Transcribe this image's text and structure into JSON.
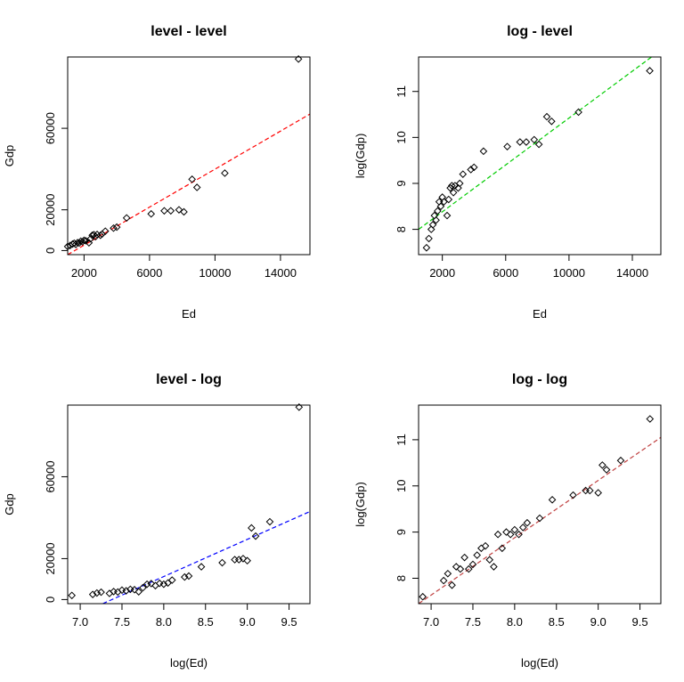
{
  "chart_data": [
    {
      "type": "scatter",
      "title": "level - level",
      "xlabel": "Ed",
      "ylabel": "Gdp",
      "xlim": [
        1000,
        15800
      ],
      "ylim": [
        -2000,
        95000
      ],
      "xticks": [
        2000,
        6000,
        10000,
        14000
      ],
      "xtick_labels": [
        "2000",
        "6000",
        "10000",
        "14000"
      ],
      "yticks": [
        0,
        20000,
        60000
      ],
      "ytick_labels": [
        "0",
        "20000",
        "60000"
      ],
      "points": [
        {
          "x": 1000,
          "y": 2000
        },
        {
          "x": 1150,
          "y": 2500
        },
        {
          "x": 1300,
          "y": 3200
        },
        {
          "x": 1400,
          "y": 3600
        },
        {
          "x": 1500,
          "y": 3000
        },
        {
          "x": 1600,
          "y": 3900
        },
        {
          "x": 1700,
          "y": 3700
        },
        {
          "x": 1800,
          "y": 4600
        },
        {
          "x": 1900,
          "y": 4300
        },
        {
          "x": 2000,
          "y": 5000
        },
        {
          "x": 2100,
          "y": 4800
        },
        {
          "x": 2300,
          "y": 3800
        },
        {
          "x": 2400,
          "y": 5800
        },
        {
          "x": 2500,
          "y": 7500
        },
        {
          "x": 2600,
          "y": 7800
        },
        {
          "x": 2700,
          "y": 6800
        },
        {
          "x": 2800,
          "y": 7900
        },
        {
          "x": 3000,
          "y": 7500
        },
        {
          "x": 3100,
          "y": 8100
        },
        {
          "x": 3300,
          "y": 9500
        },
        {
          "x": 3800,
          "y": 11000
        },
        {
          "x": 4000,
          "y": 11500
        },
        {
          "x": 4600,
          "y": 16000
        },
        {
          "x": 6100,
          "y": 18000
        },
        {
          "x": 6900,
          "y": 19500
        },
        {
          "x": 7300,
          "y": 19500
        },
        {
          "x": 7800,
          "y": 20000
        },
        {
          "x": 8100,
          "y": 19000
        },
        {
          "x": 8600,
          "y": 35000
        },
        {
          "x": 8900,
          "y": 31000
        },
        {
          "x": 10600,
          "y": 38000
        },
        {
          "x": 15100,
          "y": 94000
        }
      ],
      "fit": {
        "x": [
          1000,
          15800
        ],
        "y": [
          -2000,
          67000
        ],
        "color": "#ff0000"
      }
    },
    {
      "type": "scatter",
      "title": "log - level",
      "xlabel": "Ed",
      "ylabel": "log(Gdp)",
      "xlim": [
        500,
        15800
      ],
      "ylim": [
        7.45,
        11.75
      ],
      "xticks": [
        2000,
        6000,
        10000,
        14000
      ],
      "xtick_labels": [
        "2000",
        "6000",
        "10000",
        "14000"
      ],
      "yticks": [
        8,
        9,
        10,
        11
      ],
      "ytick_labels": [
        "8",
        "9",
        "10",
        "11"
      ],
      "points": [
        {
          "x": 1000,
          "y": 7.6
        },
        {
          "x": 1150,
          "y": 7.8
        },
        {
          "x": 1300,
          "y": 8.0
        },
        {
          "x": 1400,
          "y": 8.1
        },
        {
          "x": 1500,
          "y": 8.3
        },
        {
          "x": 1600,
          "y": 8.2
        },
        {
          "x": 1700,
          "y": 8.4
        },
        {
          "x": 1800,
          "y": 8.6
        },
        {
          "x": 1900,
          "y": 8.5
        },
        {
          "x": 2000,
          "y": 8.7
        },
        {
          "x": 2100,
          "y": 8.6
        },
        {
          "x": 2300,
          "y": 8.3
        },
        {
          "x": 2400,
          "y": 8.65
        },
        {
          "x": 2500,
          "y": 8.9
        },
        {
          "x": 2600,
          "y": 8.95
        },
        {
          "x": 2700,
          "y": 8.8
        },
        {
          "x": 2800,
          "y": 8.95
        },
        {
          "x": 3000,
          "y": 8.9
        },
        {
          "x": 3100,
          "y": 9.0
        },
        {
          "x": 3300,
          "y": 9.2
        },
        {
          "x": 3800,
          "y": 9.3
        },
        {
          "x": 4000,
          "y": 9.35
        },
        {
          "x": 4600,
          "y": 9.7
        },
        {
          "x": 6100,
          "y": 9.8
        },
        {
          "x": 6900,
          "y": 9.9
        },
        {
          "x": 7300,
          "y": 9.9
        },
        {
          "x": 7800,
          "y": 9.95
        },
        {
          "x": 8100,
          "y": 9.85
        },
        {
          "x": 8600,
          "y": 10.45
        },
        {
          "x": 8900,
          "y": 10.35
        },
        {
          "x": 10600,
          "y": 10.55
        },
        {
          "x": 15100,
          "y": 11.45
        }
      ],
      "fit": {
        "x": [
          500,
          15800
        ],
        "y": [
          8.0,
          11.9
        ],
        "color": "#00cc00"
      }
    },
    {
      "type": "scatter",
      "title": "level - log",
      "xlabel": "log(Ed)",
      "ylabel": "Gdp",
      "xlim": [
        6.85,
        9.75
      ],
      "ylim": [
        -2000,
        95000
      ],
      "xticks": [
        7.0,
        7.5,
        8.0,
        8.5,
        9.0,
        9.5
      ],
      "xtick_labels": [
        "7.0",
        "7.5",
        "8.0",
        "8.5",
        "9.0",
        "9.5"
      ],
      "yticks": [
        0,
        20000,
        60000
      ],
      "ytick_labels": [
        "0",
        "20000",
        "60000"
      ],
      "points": [
        {
          "x": 6.9,
          "y": 2000
        },
        {
          "x": 7.15,
          "y": 2500
        },
        {
          "x": 7.2,
          "y": 3200
        },
        {
          "x": 7.25,
          "y": 3600
        },
        {
          "x": 7.35,
          "y": 3000
        },
        {
          "x": 7.4,
          "y": 3900
        },
        {
          "x": 7.45,
          "y": 3700
        },
        {
          "x": 7.5,
          "y": 4600
        },
        {
          "x": 7.55,
          "y": 4300
        },
        {
          "x": 7.6,
          "y": 5000
        },
        {
          "x": 7.65,
          "y": 4800
        },
        {
          "x": 7.7,
          "y": 3800
        },
        {
          "x": 7.75,
          "y": 5800
        },
        {
          "x": 7.8,
          "y": 7500
        },
        {
          "x": 7.85,
          "y": 7800
        },
        {
          "x": 7.9,
          "y": 6800
        },
        {
          "x": 7.95,
          "y": 7900
        },
        {
          "x": 8.0,
          "y": 7500
        },
        {
          "x": 8.05,
          "y": 8100
        },
        {
          "x": 8.1,
          "y": 9500
        },
        {
          "x": 8.25,
          "y": 11000
        },
        {
          "x": 8.3,
          "y": 11500
        },
        {
          "x": 8.45,
          "y": 16000
        },
        {
          "x": 8.7,
          "y": 18000
        },
        {
          "x": 8.85,
          "y": 19500
        },
        {
          "x": 8.9,
          "y": 19500
        },
        {
          "x": 8.95,
          "y": 20000
        },
        {
          "x": 9.0,
          "y": 19000
        },
        {
          "x": 9.05,
          "y": 35000
        },
        {
          "x": 9.1,
          "y": 31000
        },
        {
          "x": 9.27,
          "y": 38000
        },
        {
          "x": 9.62,
          "y": 94000
        }
      ],
      "fit": {
        "x": [
          7.27,
          9.75
        ],
        "y": [
          -2000,
          43000
        ],
        "color": "#0000ff"
      }
    },
    {
      "type": "scatter",
      "title": "log - log",
      "xlabel": "log(Ed)",
      "ylabel": "log(Gdp)",
      "xlim": [
        6.85,
        9.75
      ],
      "ylim": [
        7.45,
        11.75
      ],
      "xticks": [
        7.0,
        7.5,
        8.0,
        8.5,
        9.0,
        9.5
      ],
      "xtick_labels": [
        "7.0",
        "7.5",
        "8.0",
        "8.5",
        "9.0",
        "9.5"
      ],
      "yticks": [
        8,
        9,
        10,
        11
      ],
      "ytick_labels": [
        "8",
        "9",
        "10",
        "11"
      ],
      "points": [
        {
          "x": 6.9,
          "y": 7.6
        },
        {
          "x": 7.15,
          "y": 7.95
        },
        {
          "x": 7.2,
          "y": 8.1
        },
        {
          "x": 7.25,
          "y": 7.85
        },
        {
          "x": 7.3,
          "y": 8.25
        },
        {
          "x": 7.35,
          "y": 8.2
        },
        {
          "x": 7.4,
          "y": 8.45
        },
        {
          "x": 7.45,
          "y": 8.2
        },
        {
          "x": 7.5,
          "y": 8.3
        },
        {
          "x": 7.55,
          "y": 8.5
        },
        {
          "x": 7.6,
          "y": 8.65
        },
        {
          "x": 7.65,
          "y": 8.7
        },
        {
          "x": 7.7,
          "y": 8.4
        },
        {
          "x": 7.75,
          "y": 8.25
        },
        {
          "x": 7.8,
          "y": 8.95
        },
        {
          "x": 7.85,
          "y": 8.65
        },
        {
          "x": 7.9,
          "y": 9.0
        },
        {
          "x": 7.95,
          "y": 8.95
        },
        {
          "x": 8.0,
          "y": 9.05
        },
        {
          "x": 8.05,
          "y": 8.95
        },
        {
          "x": 8.1,
          "y": 9.1
        },
        {
          "x": 8.15,
          "y": 9.2
        },
        {
          "x": 8.3,
          "y": 9.3
        },
        {
          "x": 8.45,
          "y": 9.7
        },
        {
          "x": 8.7,
          "y": 9.8
        },
        {
          "x": 8.85,
          "y": 9.9
        },
        {
          "x": 8.9,
          "y": 9.9
        },
        {
          "x": 9.0,
          "y": 9.85
        },
        {
          "x": 9.05,
          "y": 10.45
        },
        {
          "x": 9.1,
          "y": 10.35
        },
        {
          "x": 9.27,
          "y": 10.55
        },
        {
          "x": 9.62,
          "y": 11.45
        }
      ],
      "fit": {
        "x": [
          6.85,
          9.75
        ],
        "y": [
          7.45,
          11.05
        ],
        "color": "#c04040"
      }
    }
  ]
}
